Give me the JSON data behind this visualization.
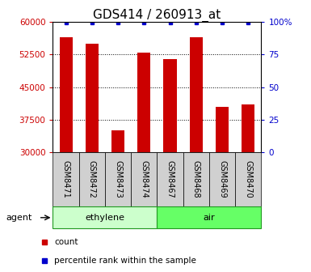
{
  "title": "GDS414 / 260913_at",
  "samples": [
    "GSM8471",
    "GSM8472",
    "GSM8473",
    "GSM8474",
    "GSM8467",
    "GSM8468",
    "GSM8469",
    "GSM8470"
  ],
  "counts": [
    56500,
    55000,
    35000,
    53000,
    51500,
    56500,
    40500,
    41000
  ],
  "groups": [
    {
      "label": "ethylene",
      "start": 0,
      "end": 4,
      "color": "#ccffcc"
    },
    {
      "label": "air",
      "start": 4,
      "end": 8,
      "color": "#66ff66"
    }
  ],
  "agent_label": "agent",
  "bar_color": "#cc0000",
  "dot_color": "#0000cc",
  "ylim": [
    30000,
    60000
  ],
  "yticks": [
    30000,
    37500,
    45000,
    52500,
    60000
  ],
  "right_yticks": [
    0,
    25,
    50,
    75,
    100
  ],
  "right_ylim": [
    0,
    100
  ],
  "legend_count_label": "count",
  "legend_percentile_label": "percentile rank within the sample",
  "bar_width": 0.5,
  "background_color": "#ffffff",
  "tick_color_left": "#cc0000",
  "tick_color_right": "#0000cc",
  "title_fontsize": 11,
  "axis_fontsize": 7.5,
  "legend_fontsize": 7.5,
  "group_label_fontsize": 8,
  "agent_fontsize": 8,
  "sample_tick_fontsize": 7
}
